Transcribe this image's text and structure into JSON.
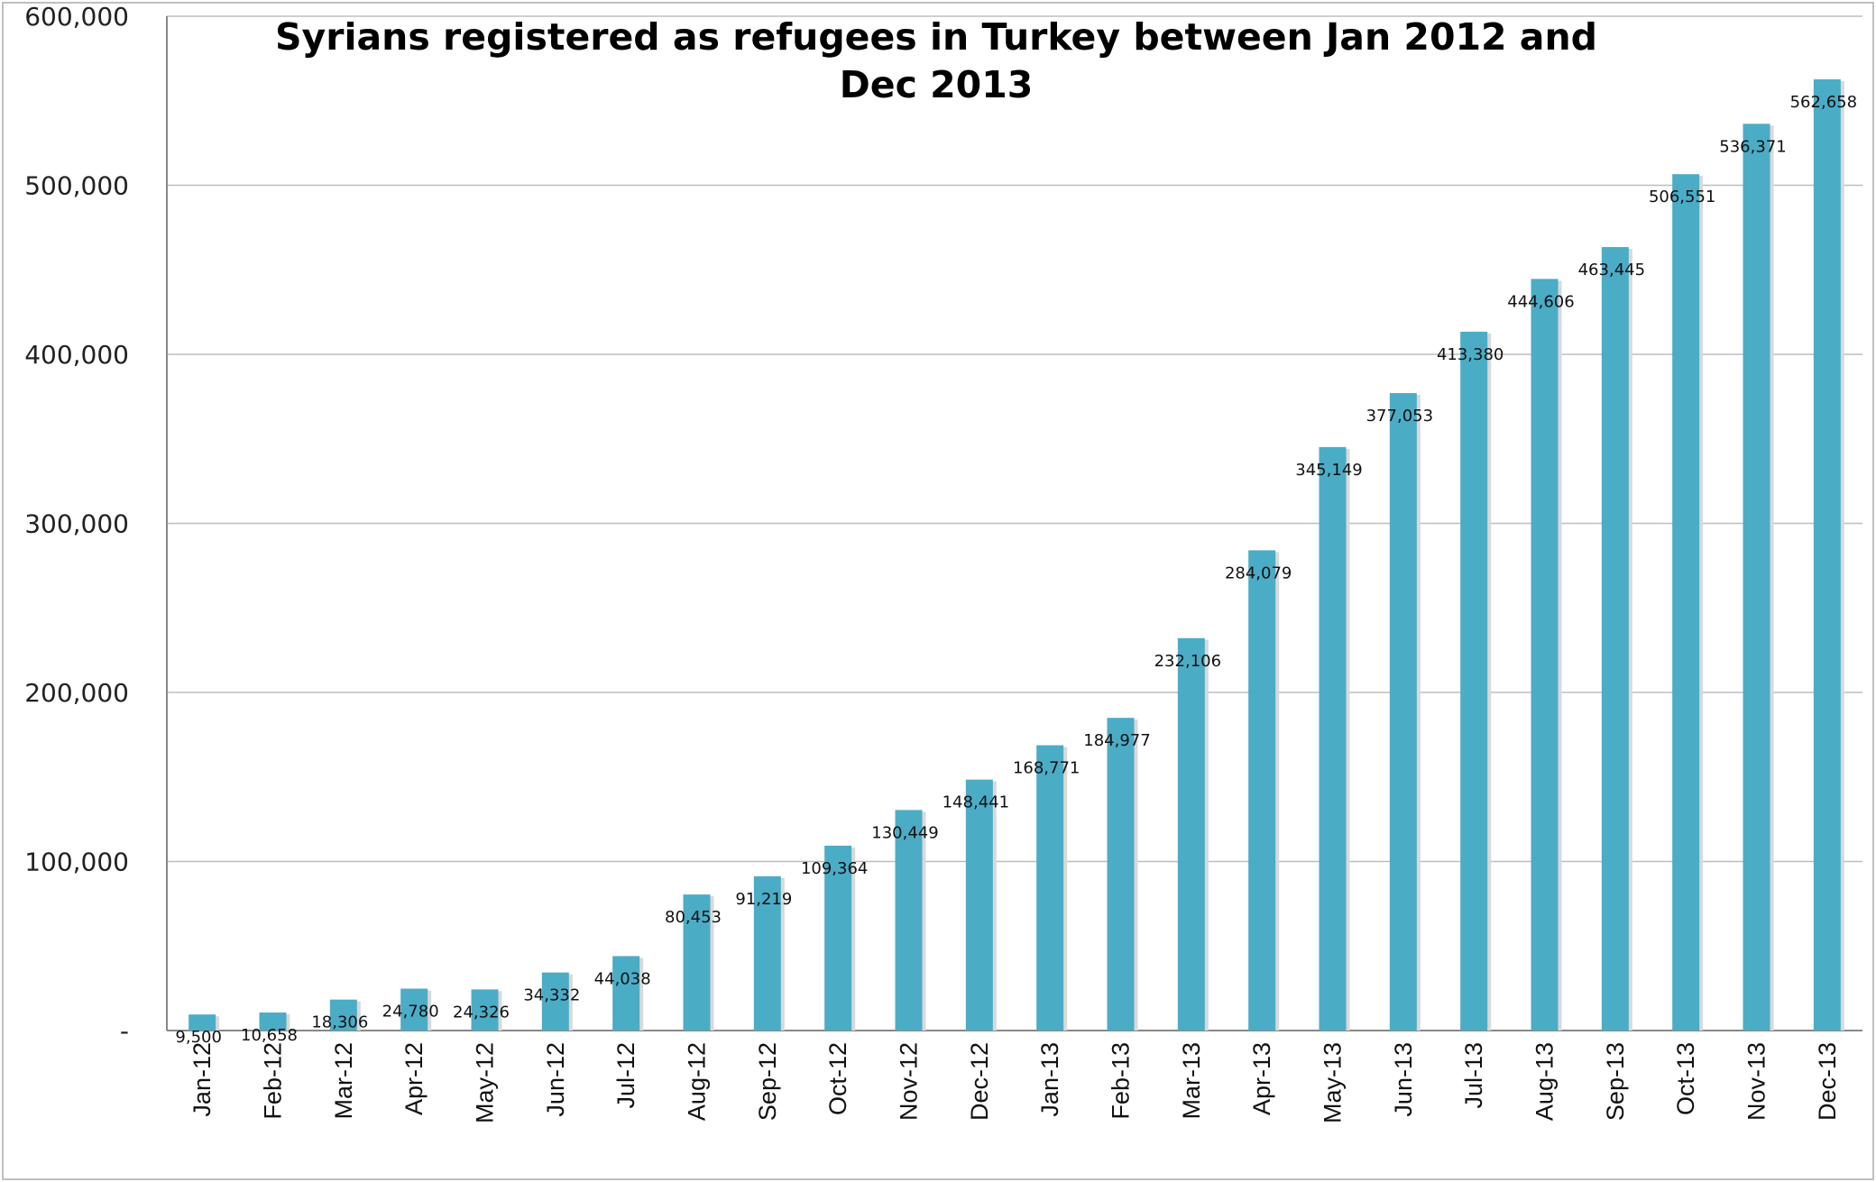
{
  "chart_data": {
    "type": "bar",
    "title": "Syrians registered as refugees in Turkey between Jan 2012 and Dec 2013",
    "title_lines": [
      "Syrians registered as refugees in Turkey between Jan 2012 and",
      "Dec 2013"
    ],
    "xlabel": "",
    "ylabel": "",
    "ylim": [
      0,
      600000
    ],
    "yticks": [
      0,
      100000,
      200000,
      300000,
      400000,
      500000,
      600000
    ],
    "ytick_labels": [
      "-",
      "100,000",
      "200,000",
      "300,000",
      "400,000",
      "500,000",
      "600,000"
    ],
    "grid": true,
    "legend": "none",
    "bar_color": "#4BACC6",
    "categories": [
      "Jan-12",
      "Feb-12",
      "Mar-12",
      "Apr-12",
      "May-12",
      "Jun-12",
      "Jul-12",
      "Aug-12",
      "Sep-12",
      "Oct-12",
      "Nov-12",
      "Dec-12",
      "Jan-13",
      "Feb-13",
      "Mar-13",
      "Apr-13",
      "May-13",
      "Jun-13",
      "Jul-13",
      "Aug-13",
      "Sep-13",
      "Oct-13",
      "Nov-13",
      "Dec-13"
    ],
    "values": [
      9500,
      10658,
      18306,
      24780,
      24326,
      34332,
      44038,
      80453,
      91219,
      109364,
      130449,
      148441,
      168771,
      184977,
      232106,
      284079,
      345149,
      377053,
      413380,
      444606,
      463445,
      506551,
      536371,
      562658
    ],
    "data_labels": [
      "9,500",
      "10,658",
      "18,306",
      "24,780",
      "24,326",
      "34,332",
      "44,038",
      "80,453",
      "91,219",
      "109,364",
      "130,449",
      "148,441",
      "168,771",
      "184,977",
      "232,106",
      "284,079",
      "345,149",
      "377,053",
      "413,380",
      "444,606",
      "463,445",
      "506,551",
      "536,371",
      "562,658"
    ]
  }
}
